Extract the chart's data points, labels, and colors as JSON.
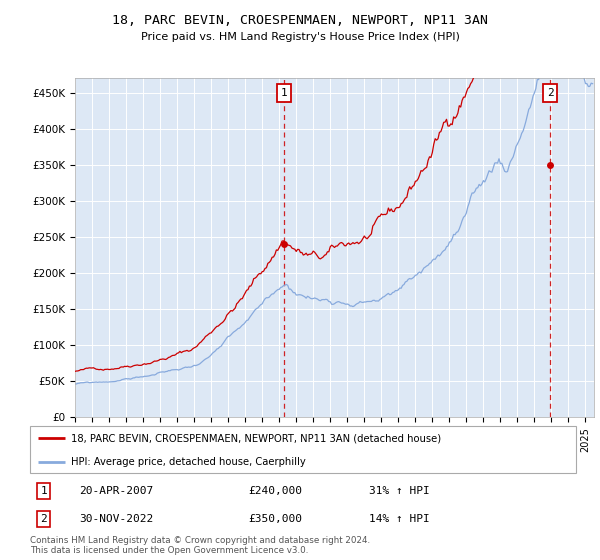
{
  "title": "18, PARC BEVIN, CROESPENMAEN, NEWPORT, NP11 3AN",
  "subtitle": "Price paid vs. HM Land Registry's House Price Index (HPI)",
  "ylabel_ticks": [
    "£0",
    "£50K",
    "£100K",
    "£150K",
    "£200K",
    "£250K",
    "£300K",
    "£350K",
    "£400K",
    "£450K"
  ],
  "ytick_vals": [
    0,
    50000,
    100000,
    150000,
    200000,
    250000,
    300000,
    350000,
    400000,
    450000
  ],
  "ylim": [
    0,
    470000
  ],
  "xlim_start": 1995.0,
  "xlim_end": 2025.5,
  "transaction1_date": 2007.29,
  "transaction1_price": 240000,
  "transaction1_label": "20-APR-2007",
  "transaction1_pct": "31% ↑ HPI",
  "transaction2_date": 2022.92,
  "transaction2_price": 350000,
  "transaction2_label": "30-NOV-2022",
  "transaction2_pct": "14% ↑ HPI",
  "legend_line1": "18, PARC BEVIN, CROESPENMAEN, NEWPORT, NP11 3AN (detached house)",
  "legend_line2": "HPI: Average price, detached house, Caerphilly",
  "footer1": "Contains HM Land Registry data © Crown copyright and database right 2024.",
  "footer2": "This data is licensed under the Open Government Licence v3.0.",
  "bg_color": "#dde8f5",
  "red_color": "#cc0000",
  "blue_color": "#88aadd"
}
